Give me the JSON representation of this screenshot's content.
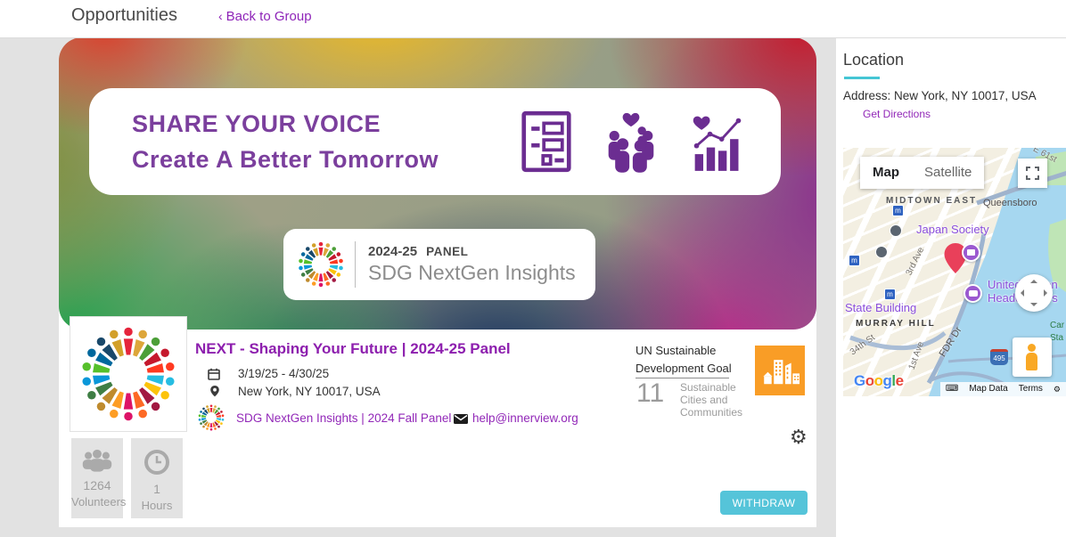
{
  "header": {
    "title": "Opportunities",
    "back_chevron": "‹",
    "back_label": "Back to Group"
  },
  "banner": {
    "line1": "SHARE YOUR VOICE",
    "line2": "Create A Better Tomorrow",
    "panel_year": "2024-25",
    "panel_word": "PANEL",
    "brand": "SDG NextGen Insights"
  },
  "details": {
    "title": "NEXT - Shaping Your Future | 2024-25 Panel",
    "date_range": "3/19/25 - 4/30/25",
    "address": "New York, NY 10017, USA",
    "org_link": "SDG NextGen Insights | 2024 Fall Panel",
    "email": "help@innerview.org"
  },
  "sdg": {
    "heading_line1": "UN Sustainable",
    "heading_line2": "Development Goal",
    "number": "11",
    "name": "Sustainable Cities and Communities",
    "tile_color": "#F99D26"
  },
  "stats": [
    {
      "value": "1264",
      "label": "Volunteers"
    },
    {
      "value": "1",
      "label": "Hours"
    }
  ],
  "actions": {
    "withdraw": "WITHDRAW"
  },
  "location_panel": {
    "heading": "Location",
    "address": "Address: New York, NY 10017, USA",
    "directions": "Get Directions"
  },
  "map": {
    "btn_map": "Map",
    "btn_satellite": "Satellite",
    "labels": {
      "midtown": "MIDTOWN EAST",
      "queensboro": "Queensboro",
      "japan_society": "Japan Society",
      "state_building": "State Building",
      "murray_hill": "MURRAY HILL",
      "un_line1": "United Nation",
      "un_line2": "Headquarters",
      "third_ave": "3rd Ave",
      "first_ave": "1st Ave",
      "street_34": "34th St",
      "fdr": "FDR Dr",
      "e61": "E 61st",
      "shield": "495",
      "car": "Car",
      "sta": "Sta",
      "transit_m": "m"
    },
    "attribution": {
      "map_data": "Map Data",
      "terms": "Terms",
      "google_letters": [
        [
          "G",
          "#4285F4"
        ],
        [
          "o",
          "#EA4335"
        ],
        [
          "o",
          "#FBBC05"
        ],
        [
          "g",
          "#4285F4"
        ],
        [
          "l",
          "#34A853"
        ],
        [
          "e",
          "#EA4335"
        ]
      ]
    }
  },
  "colors": {
    "accent_purple": "#9228b8",
    "title_purple": "#8d1fae",
    "banner_purple": "#7b3f9d",
    "button_teal": "#55c4d9",
    "underline_teal": "#45c6d4",
    "sdg_tile_orange": "#F99D26",
    "pin_red": "#e9405a"
  },
  "sdg_wheel_colors": [
    "#E5243B",
    "#DDA63A",
    "#4C9F38",
    "#C5192D",
    "#FF3A21",
    "#26BDE2",
    "#FCC30B",
    "#A21942",
    "#FD6925",
    "#DD1367",
    "#FD9D24",
    "#BF8B2E",
    "#3F7E44",
    "#0A97D9",
    "#56C02B",
    "#00689D",
    "#19486A",
    "#D2A02A"
  ]
}
